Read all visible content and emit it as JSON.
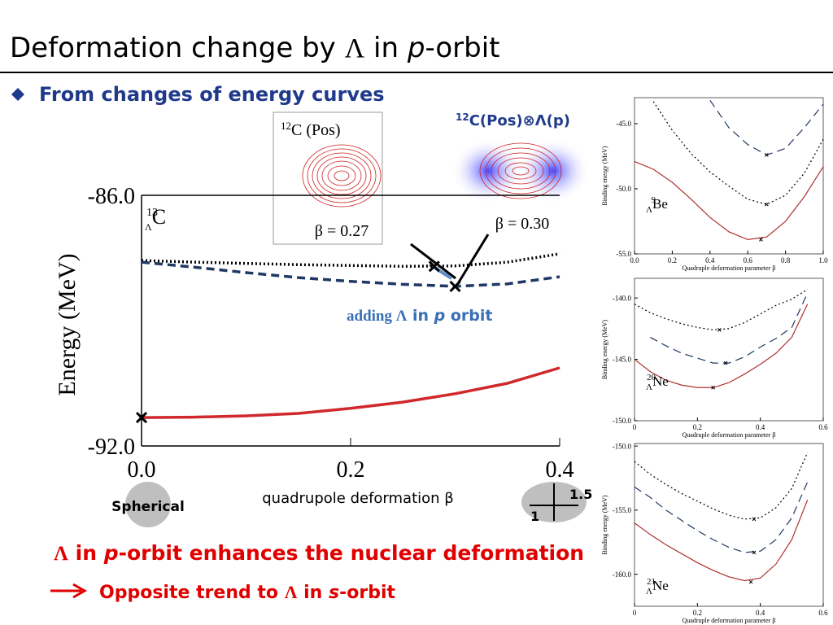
{
  "title": [
    "Deformation change by ",
    "Λ",
    " in ",
    "p",
    "-orbit"
  ],
  "bullet": "From changes of energy curves",
  "insets": [
    {
      "sup": "12",
      "text": "C (Pos)",
      "beta": "β = 0.27"
    },
    {
      "sup": "12",
      "text": "C(Pos)⊗Λ(p)",
      "beta": "β = 0.30"
    }
  ],
  "arrow_label": [
    "adding  ",
    "Λ",
    " in ",
    "p",
    " orbit"
  ],
  "spherical": "Spherical",
  "axis_ratio": [
    "1.5",
    "1"
  ],
  "conclusion": [
    "Λ",
    " in ",
    "p",
    "-orbit enhances the nuclear deformation"
  ],
  "consequence": [
    "Opposite trend to ",
    "Λ",
    " in ",
    "s",
    "-orbit"
  ],
  "chart_data": [
    {
      "type": "line",
      "label": {
        "sup": "13",
        "sub": "Λ",
        "text": "C"
      },
      "ylabel": "Energy (MeV)",
      "xlabel": "quadrupole deformation β",
      "x": [
        0,
        0.05,
        0.1,
        0.15,
        0.2,
        0.25,
        0.3,
        0.35,
        0.4
      ],
      "series": [
        {
          "color": "#000000",
          "style": "dotted",
          "values": [
            -87.56,
            -87.6,
            -87.63,
            -87.66,
            -87.68,
            -87.7,
            -87.69,
            -87.6,
            -87.4
          ]
        },
        {
          "color": "#1f3864",
          "style": "dashed",
          "values": [
            -87.6,
            -87.72,
            -87.85,
            -87.97,
            -88.06,
            -88.13,
            -88.18,
            -88.12,
            -87.95
          ]
        },
        {
          "color": "#d0282d",
          "style": "solid",
          "values": [
            -91.32,
            -91.31,
            -91.28,
            -91.22,
            -91.1,
            -90.95,
            -90.75,
            -90.5,
            -90.13
          ]
        }
      ],
      "minima": {
        "x": [
          0,
          0.28,
          0.3
        ],
        "y": [
          -91.32,
          -87.7,
          -88.18
        ]
      },
      "xlim": [
        0,
        0.4
      ],
      "ylim": [
        -92,
        -86
      ],
      "xticks": [
        {
          "value": 0,
          "label": "0.0"
        },
        {
          "value": 0.2,
          "label": "0.2"
        },
        {
          "value": 0.4,
          "label": "0.4"
        }
      ],
      "yticks": [
        {
          "value": -86,
          "label": "-86.0"
        },
        {
          "value": -92,
          "label": "-92.0"
        }
      ]
    },
    {
      "type": "line",
      "label": {
        "sup": "9",
        "sub": "Λ",
        "text": "Be"
      },
      "ylabel": "Binding energy (MeV)",
      "xlabel": "Quadruple deformation parameter β",
      "x": [
        0,
        0.1,
        0.2,
        0.3,
        0.4,
        0.5,
        0.6,
        0.7,
        0.8,
        0.9,
        1.0
      ],
      "series": [
        {
          "color": "#000000",
          "style": "dotted",
          "values": [
            null,
            -43.3,
            -45.5,
            -47.3,
            -48.7,
            -49.8,
            -50.8,
            -51.2,
            -50.5,
            -48.8,
            -46.2
          ]
        },
        {
          "color": "#1f3864",
          "style": "dashed",
          "values": [
            null,
            null,
            null,
            null,
            -43.2,
            -45.3,
            -46.6,
            -47.4,
            -46.9,
            -45.3,
            -43.5
          ]
        },
        {
          "color": "#b03030",
          "style": "solid",
          "values": [
            -47.9,
            -48.5,
            -49.5,
            -50.8,
            -52.2,
            -53.3,
            -53.9,
            -53.7,
            -52.5,
            -50.6,
            -48.3
          ]
        }
      ],
      "minima": {
        "x": [
          0.67,
          0.7,
          0.7
        ],
        "y": [
          -53.9,
          -51.2,
          -47.4
        ]
      },
      "xlim": [
        0,
        1
      ],
      "ylim": [
        -55,
        -43
      ],
      "xticks": [
        {
          "value": 0,
          "label": "0.0"
        },
        {
          "value": 0.2,
          "label": "0.2"
        },
        {
          "value": 0.4,
          "label": "0.4"
        },
        {
          "value": 0.6,
          "label": "0.6"
        },
        {
          "value": 0.8,
          "label": "0.8"
        },
        {
          "value": 1,
          "label": "1.0"
        }
      ],
      "yticks": [
        {
          "value": -45,
          "label": "-45.0"
        },
        {
          "value": -50,
          "label": "-50.0"
        },
        {
          "value": -55,
          "label": "-55.0"
        }
      ]
    },
    {
      "type": "line",
      "label": {
        "sup": "20",
        "sub": "Λ",
        "text": "Ne"
      },
      "ylabel": "Binding energy (MeV)",
      "xlabel": "Quadruple deformation parameter β",
      "x": [
        0,
        0.05,
        0.1,
        0.15,
        0.2,
        0.25,
        0.3,
        0.35,
        0.4,
        0.45,
        0.5,
        0.55
      ],
      "series": [
        {
          "color": "#000000",
          "style": "dotted",
          "values": [
            -140.5,
            -141.2,
            -141.7,
            -142.1,
            -142.4,
            -142.6,
            -142.5,
            -142.0,
            -141.3,
            -140.6,
            -140.1,
            -139.3
          ]
        },
        {
          "color": "#1f3864",
          "style": "dashed",
          "values": [
            null,
            -143.2,
            -143.9,
            -144.5,
            -144.9,
            -145.3,
            -145.3,
            -144.8,
            -144.0,
            -143.3,
            -142.4,
            -139.6
          ]
        },
        {
          "color": "#b03030",
          "style": "solid",
          "values": [
            -145.0,
            -146.0,
            -146.7,
            -147.1,
            -147.3,
            -147.3,
            -146.9,
            -146.2,
            -145.4,
            -144.5,
            -143.2,
            -140.5
          ]
        }
      ],
      "minima": {
        "x": [
          0.27,
          0.29,
          0.25
        ],
        "y": [
          -142.6,
          -145.3,
          -147.3
        ]
      },
      "xlim": [
        0,
        0.6
      ],
      "ylim": [
        -150,
        -138.4
      ],
      "xticks": [
        0,
        0.2,
        0.4,
        0.6
      ],
      "yticks": [
        {
          "value": -140,
          "label": "-140.0"
        },
        {
          "value": -145,
          "label": "-145.0"
        },
        {
          "value": -150,
          "label": "-150.0"
        }
      ]
    },
    {
      "type": "line",
      "label": {
        "sup": "21",
        "sub": "Λ",
        "text": "Ne"
      },
      "ylabel": "Binding energy (MeV)",
      "xlabel": "Quadruple deformation parameter β",
      "x": [
        0,
        0.05,
        0.1,
        0.15,
        0.2,
        0.25,
        0.3,
        0.35,
        0.4,
        0.45,
        0.5,
        0.55
      ],
      "series": [
        {
          "color": "#000000",
          "style": "dotted",
          "values": [
            -151.2,
            -152.2,
            -153.0,
            -153.7,
            -154.3,
            -154.9,
            -155.4,
            -155.7,
            -155.6,
            -154.8,
            -153.3,
            -150.5
          ]
        },
        {
          "color": "#1f3864",
          "style": "dashed",
          "values": [
            -153.2,
            -154.0,
            -155.0,
            -155.8,
            -156.6,
            -157.3,
            -157.9,
            -158.3,
            -158.2,
            -157.3,
            -155.6,
            -152.8
          ]
        },
        {
          "color": "#b03030",
          "style": "solid",
          "values": [
            -156.0,
            -156.9,
            -157.7,
            -158.4,
            -159.1,
            -159.7,
            -160.2,
            -160.5,
            -160.3,
            -159.2,
            -157.3,
            -154.2
          ]
        }
      ],
      "minima": {
        "x": [
          0.38,
          0.38,
          0.37
        ],
        "y": [
          -155.7,
          -158.3,
          -160.6
        ]
      },
      "xlim": [
        0,
        0.6
      ],
      "ylim": [
        -162.5,
        -149.8
      ],
      "xticks": [
        0,
        0.2,
        0.4,
        0.6
      ],
      "yticks": [
        {
          "value": -150,
          "label": "-150.0"
        },
        {
          "value": -155,
          "label": "-155.0"
        },
        {
          "value": -160,
          "label": "-160.0"
        }
      ]
    }
  ]
}
